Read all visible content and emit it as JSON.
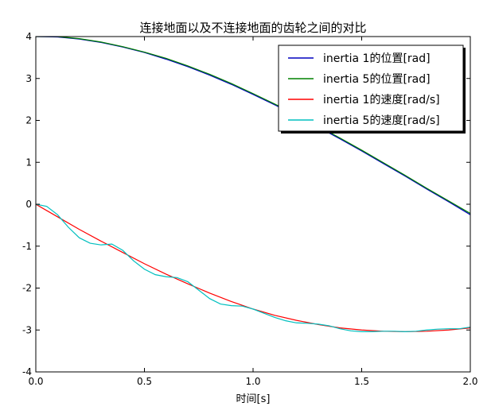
{
  "chart_data": {
    "type": "line",
    "title": "连接地面以及不连接地面的齿轮之间的对比",
    "xlabel": "时间[s]",
    "ylabel": "",
    "xlim": [
      0.0,
      2.0
    ],
    "ylim": [
      -4,
      4
    ],
    "xticks": [
      0.0,
      0.5,
      1.0,
      1.5,
      2.0
    ],
    "xtick_labels": [
      "0.0",
      "0.5",
      "1.0",
      "1.5",
      "2.0"
    ],
    "yticks": [
      4,
      3,
      2,
      1,
      0,
      -1,
      -2,
      -3,
      -4
    ],
    "ytick_labels": [
      "4",
      "3",
      "2",
      "1",
      "0",
      "-1",
      "-2",
      "-3",
      "-4"
    ],
    "grid": false,
    "legend_position": "top-right",
    "series": [
      {
        "name": "inertia 1的位置[rad]",
        "color": "#0000bf",
        "x": [
          0.0,
          0.1,
          0.2,
          0.3,
          0.4,
          0.5,
          0.6,
          0.7,
          0.8,
          0.9,
          1.0,
          1.1,
          1.2,
          1.3,
          1.4,
          1.5,
          1.6,
          1.7,
          1.8,
          1.9,
          2.0
        ],
        "y": [
          4.0,
          3.99,
          3.94,
          3.86,
          3.75,
          3.62,
          3.46,
          3.28,
          3.08,
          2.86,
          2.62,
          2.37,
          2.11,
          1.84,
          1.56,
          1.27,
          0.97,
          0.67,
          0.36,
          0.06,
          -0.25
        ]
      },
      {
        "name": "inertia 5的位置[rad]",
        "color": "#008000",
        "x": [
          0.0,
          0.1,
          0.2,
          0.3,
          0.4,
          0.5,
          0.6,
          0.7,
          0.8,
          0.9,
          1.0,
          1.1,
          1.2,
          1.3,
          1.4,
          1.5,
          1.6,
          1.7,
          1.8,
          1.9,
          2.0
        ],
        "y": [
          4.0,
          4.0,
          3.95,
          3.87,
          3.76,
          3.63,
          3.48,
          3.3,
          3.1,
          2.88,
          2.64,
          2.39,
          2.13,
          1.86,
          1.58,
          1.29,
          0.99,
          0.69,
          0.38,
          0.08,
          -0.22
        ]
      },
      {
        "name": "inertia 1的速度[rad/s]",
        "color": "#ff0000",
        "x": [
          0.0,
          0.1,
          0.2,
          0.3,
          0.4,
          0.5,
          0.6,
          0.7,
          0.8,
          0.9,
          1.0,
          1.1,
          1.2,
          1.3,
          1.4,
          1.5,
          1.6,
          1.7,
          1.8,
          1.9,
          2.0
        ],
        "y": [
          0.0,
          -0.3,
          -0.6,
          -0.88,
          -1.15,
          -1.42,
          -1.67,
          -1.9,
          -2.12,
          -2.32,
          -2.5,
          -2.65,
          -2.77,
          -2.87,
          -2.95,
          -3.0,
          -3.03,
          -3.04,
          -3.03,
          -3.0,
          -2.95
        ]
      },
      {
        "name": "inertia 5的速度[rad/s]",
        "color": "#00bfbf",
        "x": [
          0.0,
          0.05,
          0.1,
          0.15,
          0.2,
          0.25,
          0.3,
          0.35,
          0.4,
          0.45,
          0.5,
          0.55,
          0.6,
          0.65,
          0.7,
          0.75,
          0.8,
          0.85,
          0.9,
          0.95,
          1.0,
          1.05,
          1.1,
          1.15,
          1.2,
          1.25,
          1.3,
          1.35,
          1.4,
          1.45,
          1.5,
          1.55,
          1.6,
          1.65,
          1.7,
          1.75,
          1.8,
          1.85,
          1.9,
          1.95,
          2.0
        ],
        "y": [
          0.0,
          -0.05,
          -0.25,
          -0.55,
          -0.8,
          -0.93,
          -0.97,
          -0.95,
          -1.1,
          -1.35,
          -1.55,
          -1.68,
          -1.73,
          -1.75,
          -1.85,
          -2.05,
          -2.25,
          -2.38,
          -2.42,
          -2.43,
          -2.5,
          -2.6,
          -2.7,
          -2.78,
          -2.83,
          -2.84,
          -2.86,
          -2.9,
          -2.97,
          -3.02,
          -3.04,
          -3.04,
          -3.03,
          -3.03,
          -3.04,
          -3.03,
          -3.0,
          -2.98,
          -2.97,
          -2.97,
          -2.93
        ]
      }
    ]
  }
}
